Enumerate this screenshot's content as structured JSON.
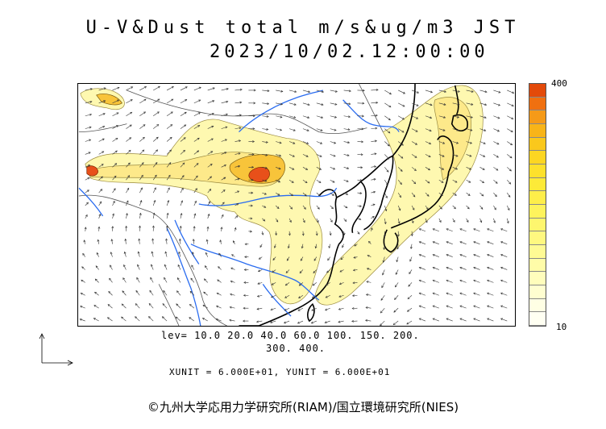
{
  "header": {
    "title": "U-V&Dust total m/s&ug/m3 JST",
    "datetime": "2023/10/02.12:00:00"
  },
  "colorbar": {
    "max_label": "400",
    "min_label": "10",
    "colors": [
      "#e34a0a",
      "#f07010",
      "#f59a18",
      "#f8b418",
      "#fac81c",
      "#fcd622",
      "#fde12c",
      "#fdea38",
      "#feee4a",
      "#fef35c",
      "#fef66e",
      "#fff880",
      "#fffa94",
      "#fffca8",
      "#fffdbc",
      "#fffed0",
      "#ffffe4",
      "#fffff2"
    ]
  },
  "legend": {
    "levels_line1": "lev= 10.0 20.0 40.0 60.0 100. 150. 200.",
    "levels_line2": "300. 400.",
    "units": "XUNIT = 6.000E+01, YUNIT = 6.000E+01"
  },
  "footer": {
    "copyright": "©九州大学応用力学研究所(RIAM)/国立環境研究所(NIES)"
  },
  "map": {
    "colors": {
      "dust_light": "#fef8b0",
      "dust_mid": "#fde98a",
      "dust_high": "#f8c43a",
      "dust_peak": "#e8501a",
      "coast": "#000000",
      "border": "#555555",
      "river": "#2a6cf0",
      "wind": "#333333"
    }
  }
}
